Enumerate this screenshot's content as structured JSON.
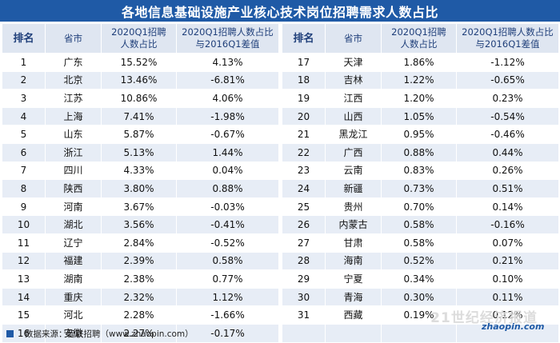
{
  "title": "各地信息基础设施产业核心技术岗位招聘需求人数占比",
  "headers": {
    "rank": "排名",
    "province": "省市",
    "share_line1": "2020Q1招聘",
    "share_line2": "人数占比",
    "diff_line1": "2020Q1招聘人数占比",
    "diff_line2": "与2016Q1差值"
  },
  "left_rows": [
    {
      "rank": "1",
      "province": "广东",
      "share": "15.52%",
      "diff": "4.13%"
    },
    {
      "rank": "2",
      "province": "北京",
      "share": "13.46%",
      "diff": "-6.81%"
    },
    {
      "rank": "3",
      "province": "江苏",
      "share": "10.86%",
      "diff": "4.06%"
    },
    {
      "rank": "4",
      "province": "上海",
      "share": "7.41%",
      "diff": "-1.98%"
    },
    {
      "rank": "5",
      "province": "山东",
      "share": "5.87%",
      "diff": "-0.67%"
    },
    {
      "rank": "6",
      "province": "浙江",
      "share": "5.13%",
      "diff": "1.44%"
    },
    {
      "rank": "7",
      "province": "四川",
      "share": "4.33%",
      "diff": "0.04%"
    },
    {
      "rank": "8",
      "province": "陕西",
      "share": "3.80%",
      "diff": "0.88%"
    },
    {
      "rank": "9",
      "province": "河南",
      "share": "3.67%",
      "diff": "-0.03%"
    },
    {
      "rank": "10",
      "province": "湖北",
      "share": "3.56%",
      "diff": "-0.41%"
    },
    {
      "rank": "11",
      "province": "辽宁",
      "share": "2.84%",
      "diff": "-0.52%"
    },
    {
      "rank": "12",
      "province": "福建",
      "share": "2.39%",
      "diff": "0.58%"
    },
    {
      "rank": "13",
      "province": "湖南",
      "share": "2.38%",
      "diff": "0.77%"
    },
    {
      "rank": "14",
      "province": "重庆",
      "share": "2.32%",
      "diff": "1.12%"
    },
    {
      "rank": "15",
      "province": "河北",
      "share": "2.28%",
      "diff": "-1.66%"
    },
    {
      "rank": "16",
      "province": "安徽",
      "share": "2.27%",
      "diff": "-0.17%"
    }
  ],
  "right_rows": [
    {
      "rank": "17",
      "province": "天津",
      "share": "1.86%",
      "diff": "-1.12%"
    },
    {
      "rank": "18",
      "province": "吉林",
      "share": "1.22%",
      "diff": "-0.65%"
    },
    {
      "rank": "19",
      "province": "江西",
      "share": "1.20%",
      "diff": "0.23%"
    },
    {
      "rank": "20",
      "province": "山西",
      "share": "1.05%",
      "diff": "-0.54%"
    },
    {
      "rank": "21",
      "province": "黑龙江",
      "share": "0.95%",
      "diff": "-0.46%"
    },
    {
      "rank": "22",
      "province": "广西",
      "share": "0.88%",
      "diff": "0.44%"
    },
    {
      "rank": "23",
      "province": "云南",
      "share": "0.83%",
      "diff": "0.26%"
    },
    {
      "rank": "24",
      "province": "新疆",
      "share": "0.73%",
      "diff": "0.51%"
    },
    {
      "rank": "25",
      "province": "贵州",
      "share": "0.70%",
      "diff": "0.14%"
    },
    {
      "rank": "26",
      "province": "内蒙古",
      "share": "0.58%",
      "diff": "-0.16%"
    },
    {
      "rank": "27",
      "province": "甘肃",
      "share": "0.58%",
      "diff": "0.07%"
    },
    {
      "rank": "28",
      "province": "海南",
      "share": "0.52%",
      "diff": "0.21%"
    },
    {
      "rank": "29",
      "province": "宁夏",
      "share": "0.34%",
      "diff": "0.10%"
    },
    {
      "rank": "30",
      "province": "青海",
      "share": "0.30%",
      "diff": "0.11%"
    },
    {
      "rank": "31",
      "province": "西藏",
      "share": "0.19%",
      "diff": "0.12%"
    },
    {
      "rank": "",
      "province": "",
      "share": "",
      "diff": ""
    }
  ],
  "footer": {
    "source": "数据来源：智联招聘（www.zhaopin.com）"
  },
  "watermark": {
    "text": "21世纪经济报道",
    "logo_text": "zhaopin.com"
  },
  "colors": {
    "title_bg": "#1f5aa6",
    "header_bg": "#dfe6f1",
    "stripe": "#e7edf6"
  }
}
